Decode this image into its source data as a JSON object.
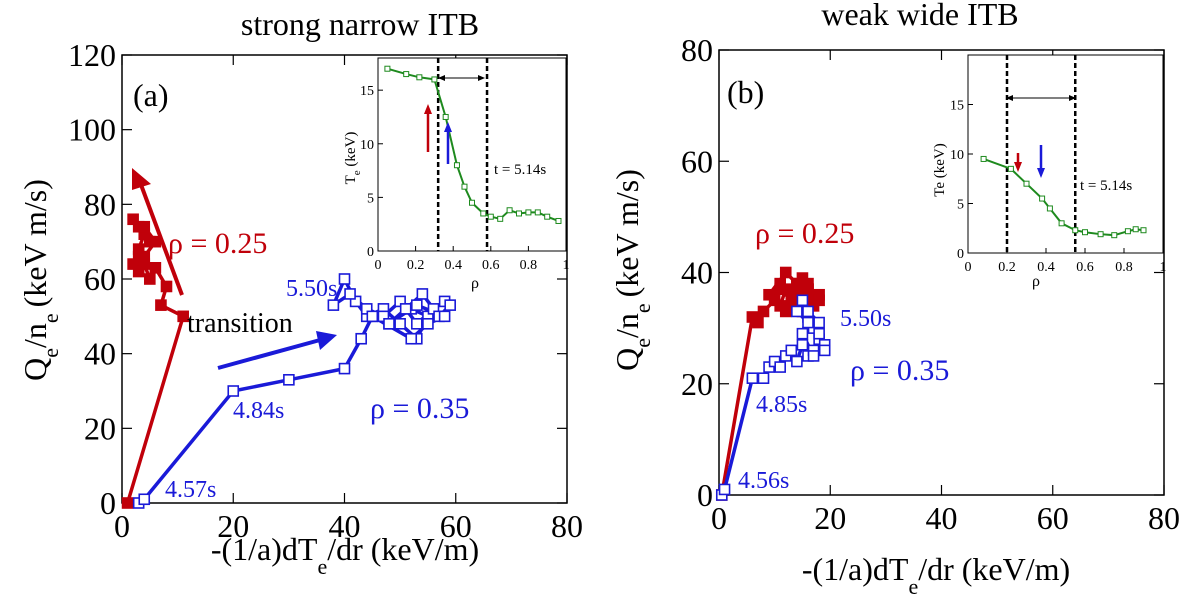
{
  "colors": {
    "red": "#c0000a",
    "blue": "#1a1ad8",
    "green": "#1e8a1e",
    "black": "#000000"
  },
  "chart_data": [
    {
      "type": "scatter",
      "title": "strong narrow ITB",
      "panel_label": "(a)",
      "xlabel": "-(1/a)dT",
      "xlabel_sub": "e",
      "xlabel_tail": "/dr (keV/m)",
      "ylabel_main": "Q",
      "ylabel_sub1": "e",
      "ylabel_mid": "/n",
      "ylabel_sub2": "e",
      "ylabel_tail": "(keV m/s)",
      "xlim": [
        0,
        80
      ],
      "ylim": [
        0,
        120
      ],
      "xticks": [
        0,
        20,
        40,
        60,
        80
      ],
      "yticks": [
        0,
        20,
        40,
        60,
        80,
        100,
        120
      ],
      "series": [
        {
          "name": "ρ = 0.25",
          "color": "red",
          "marker": "filled-square",
          "x": [
            1,
            11,
            7,
            8,
            6,
            5,
            4,
            3,
            2,
            3,
            4,
            5,
            3,
            2,
            4,
            6,
            4,
            3
          ],
          "y": [
            0,
            50,
            53,
            58,
            63,
            60,
            64,
            66,
            64,
            68,
            72,
            70,
            74,
            76,
            74,
            70,
            66,
            62
          ]
        },
        {
          "name": "ρ = 0.35",
          "color": "blue",
          "marker": "open-square",
          "x": [
            3,
            4,
            20,
            30,
            40,
            43,
            45,
            48,
            52,
            55,
            53,
            50,
            47,
            44,
            42,
            40,
            38,
            41,
            44,
            47,
            50,
            53,
            56,
            58,
            59,
            57,
            54,
            51,
            48,
            45,
            52,
            55,
            58,
            53
          ],
          "y": [
            0,
            1,
            30,
            33,
            36,
            44,
            50,
            48,
            52,
            50,
            44,
            48,
            52,
            50,
            54,
            60,
            53,
            56,
            52,
            50,
            54,
            48,
            52,
            54,
            53,
            50,
            56,
            52,
            48,
            50,
            44,
            48,
            50,
            53
          ]
        }
      ],
      "annotations": [
        "ρ = 0.25",
        "ρ = 0.35",
        "transition",
        "5.50s",
        "4.84s",
        "4.57s"
      ],
      "inset": {
        "type": "line",
        "xlabel": "ρ",
        "ylabel_main": "T",
        "ylabel_sub": "e",
        "ylabel_tail": " (keV)",
        "xlim": [
          0,
          1
        ],
        "ylim": [
          0,
          18
        ],
        "xticks": [
          "0",
          "0.2",
          "0.4",
          "0.6",
          "0.8",
          "1"
        ],
        "xtick_values": [
          0,
          0.2,
          0.4,
          0.6,
          0.8,
          1
        ],
        "yticks": [
          0,
          5,
          10,
          15
        ],
        "series_color": "green",
        "x": [
          0.05,
          0.15,
          0.22,
          0.3,
          0.36,
          0.42,
          0.46,
          0.5,
          0.56,
          0.6,
          0.65,
          0.7,
          0.75,
          0.8,
          0.85,
          0.9,
          0.96
        ],
        "y": [
          17,
          16.5,
          16.2,
          16,
          12.5,
          8,
          6,
          4.5,
          3.5,
          3.2,
          3,
          3.8,
          3.5,
          3.6,
          3.6,
          3.2,
          2.8
        ],
        "vlines": [
          0.32,
          0.58
        ],
        "time_label": "t = 5.14s"
      }
    },
    {
      "type": "scatter",
      "title": "weak wide ITB",
      "panel_label": "(b)",
      "xlabel": "-(1/a)dT",
      "xlabel_sub": "e",
      "xlabel_tail": "/dr (keV/m)",
      "ylabel_main": "Q",
      "ylabel_sub1": "e",
      "ylabel_mid": "/n",
      "ylabel_sub2": "e",
      "ylabel_tail": "(keV m/s)",
      "xlim": [
        0,
        80
      ],
      "ylim": [
        0,
        80
      ],
      "xticks": [
        0,
        20,
        40,
        60,
        80
      ],
      "yticks": [
        0,
        20,
        40,
        60,
        80
      ],
      "series": [
        {
          "name": "ρ = 0.25",
          "color": "red",
          "marker": "filled-square",
          "x": [
            0.5,
            6,
            7,
            8,
            10,
            11,
            12,
            13,
            14,
            15,
            16,
            17,
            15,
            13,
            11,
            9,
            12,
            14,
            16,
            18,
            17,
            15,
            13,
            11,
            14,
            16,
            18,
            12
          ],
          "y": [
            0,
            32,
            31,
            33,
            35,
            34,
            37,
            36,
            38,
            39,
            37,
            35,
            34,
            36,
            38,
            36,
            40,
            38,
            37,
            36,
            34,
            33,
            35,
            37,
            36,
            38,
            35,
            33
          ]
        },
        {
          "name": "ρ = 0.35",
          "color": "blue",
          "marker": "open-square",
          "x": [
            0.5,
            1,
            6,
            8,
            9,
            10,
            11,
            12,
            13,
            14,
            15,
            16,
            17,
            18,
            17,
            16,
            15,
            14,
            16,
            18,
            19,
            17,
            15,
            16,
            18,
            19
          ],
          "y": [
            0,
            1,
            21,
            21,
            23,
            24,
            23,
            25,
            26,
            24,
            27,
            25,
            26,
            28,
            30,
            32,
            35,
            33,
            31,
            29,
            27,
            25,
            29,
            33,
            31,
            26
          ]
        }
      ],
      "annotations": [
        "ρ = 0.25",
        "ρ = 0.35",
        "5.50s",
        "4.85s",
        "4.56s"
      ],
      "inset": {
        "type": "line",
        "xlabel": "ρ",
        "ylabel_main": "Te (keV)",
        "xlim": [
          0,
          1
        ],
        "ylim": [
          0,
          20
        ],
        "xticks": [
          "0",
          "0.2",
          "0.4",
          "0.6",
          "0.8",
          "1"
        ],
        "xtick_values": [
          0,
          0.2,
          0.4,
          0.6,
          0.8,
          1
        ],
        "yticks": [
          0,
          5,
          10,
          15
        ],
        "series_color": "green",
        "x": [
          0.08,
          0.22,
          0.3,
          0.38,
          0.42,
          0.48,
          0.55,
          0.6,
          0.68,
          0.75,
          0.82,
          0.86,
          0.9
        ],
        "y": [
          9.5,
          8.5,
          7,
          5.5,
          4.5,
          3,
          2.3,
          2.1,
          1.9,
          1.8,
          2.2,
          2.4,
          2.3
        ],
        "vlines": [
          0.2,
          0.55
        ],
        "time_label": "t = 5.14s"
      }
    }
  ]
}
